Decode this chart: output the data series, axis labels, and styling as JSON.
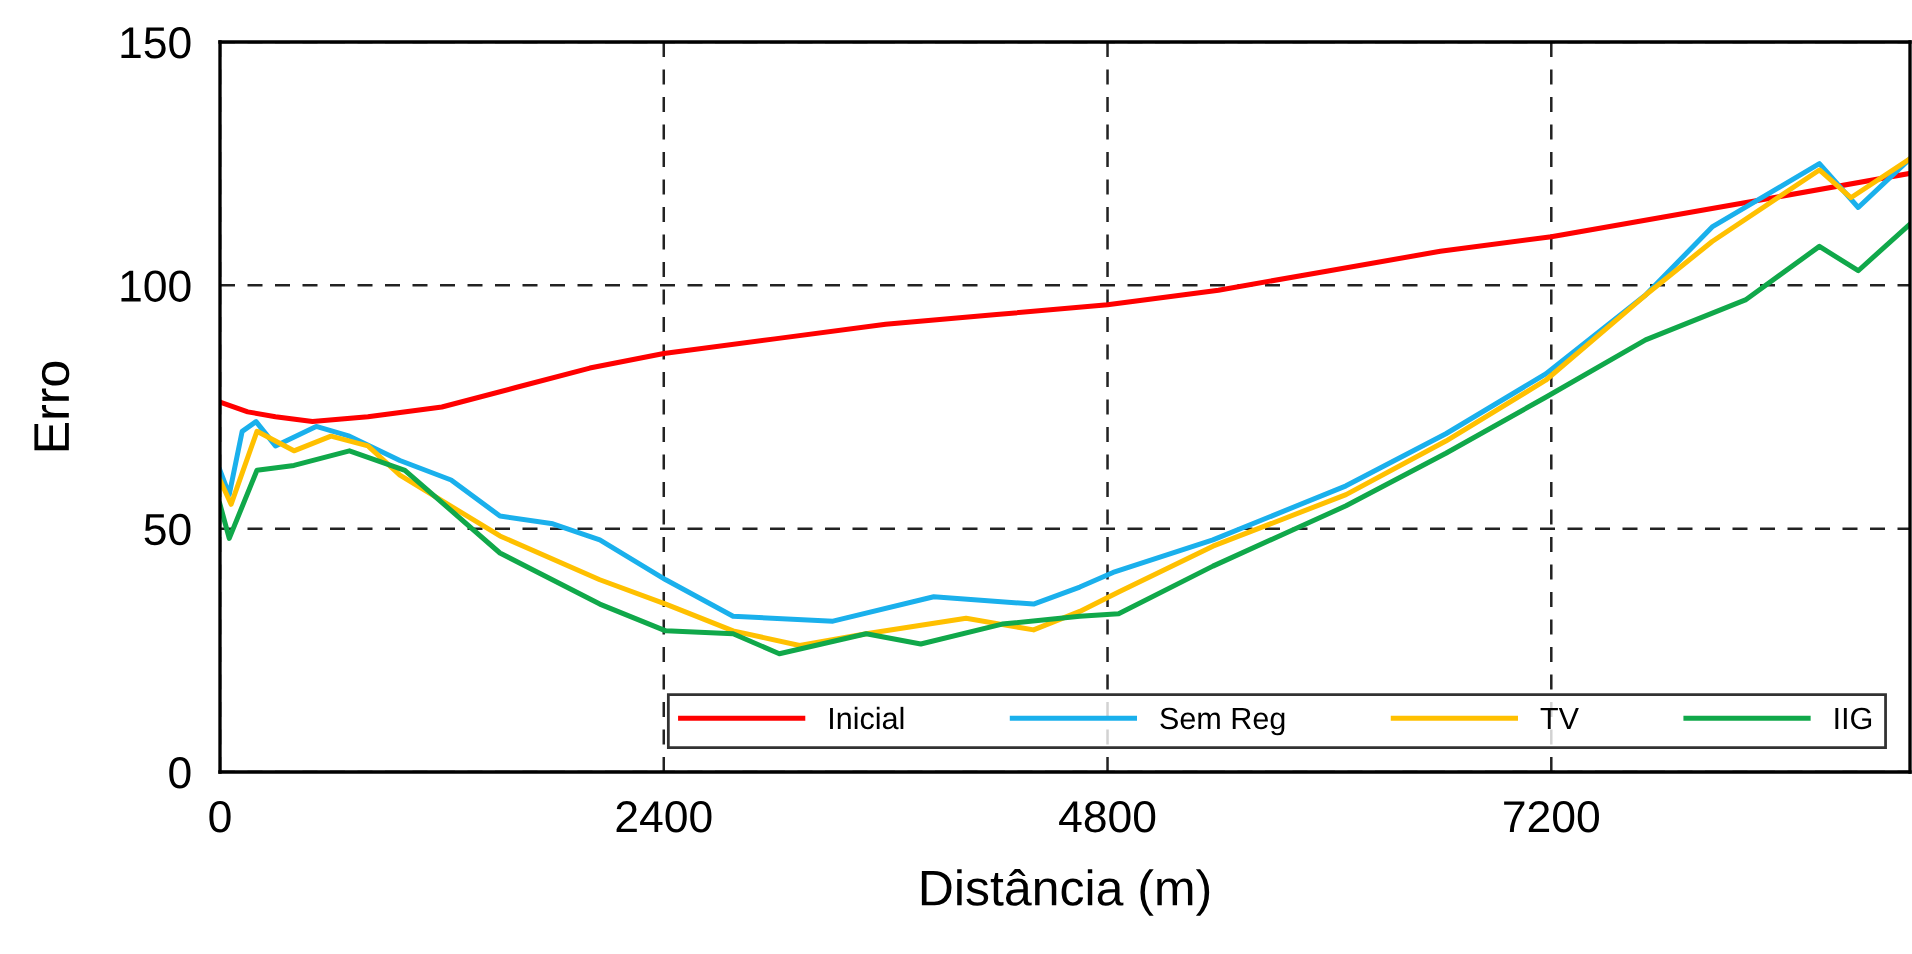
{
  "chart_data": {
    "type": "line",
    "xlabel": "Distância (m)",
    "ylabel": "Erro",
    "xlim": [
      0,
      9140
    ],
    "ylim": [
      0,
      150
    ],
    "xticks": [
      0,
      2400,
      4800,
      7200
    ],
    "yticks": [
      0,
      50,
      100,
      150
    ],
    "grid": true,
    "legend": "bottom right",
    "line_style": "solid",
    "marker": "none",
    "series": [
      {
        "name": "Inicial",
        "color": "#ff0000",
        "x": [
          0,
          150,
          300,
          500,
          800,
          1200,
          1600,
          2000,
          2400,
          3000,
          3600,
          4200,
          4800,
          5400,
          6000,
          6600,
          7200,
          7800,
          8400,
          9140
        ],
        "values": [
          76,
          74,
          73,
          72,
          73,
          75,
          79,
          83,
          86,
          89,
          92,
          94,
          96,
          99,
          103,
          107,
          110,
          114,
          118,
          123
        ]
      },
      {
        "name": "Sem Reg",
        "color": "#1ab0ec",
        "x": [
          0,
          50,
          120,
          195,
          300,
          520,
          700,
          973,
          1250,
          1514,
          1800,
          2054,
          2411,
          2775,
          3315,
          3860,
          4400,
          4650,
          4830,
          5370,
          6090,
          6630,
          7170,
          7710,
          8070,
          8650,
          8860,
          9140
        ],
        "values": [
          62,
          57,
          70,
          72,
          67,
          71,
          69,
          64,
          60,
          52.6,
          51,
          47.7,
          39.5,
          32,
          31,
          36,
          34.5,
          38,
          41,
          47.7,
          58.8,
          69.5,
          81.8,
          98,
          112,
          125,
          116,
          126
        ]
      },
      {
        "name": "TV",
        "color": "#ffc000",
        "x": [
          0,
          60,
          200,
          400,
          600,
          800,
          973,
          1514,
          2054,
          2411,
          2775,
          3135,
          3495,
          4035,
          4400,
          4650,
          4860,
          5370,
          6090,
          6630,
          7170,
          7710,
          8070,
          8650,
          8820,
          9140
        ],
        "values": [
          60,
          55,
          70,
          66,
          69,
          67,
          61,
          48.5,
          39.5,
          34.5,
          29,
          26,
          28.4,
          31.6,
          29.2,
          33,
          37,
          46.4,
          57,
          68,
          80.5,
          98,
          109,
          123.7,
          118,
          126
        ]
      },
      {
        "name": "IIG",
        "color": "#10a84a",
        "x": [
          0,
          50,
          200,
          400,
          700,
          1000,
          1514,
          2054,
          2411,
          2775,
          3025,
          3495,
          3790,
          4230,
          4650,
          4860,
          5370,
          6090,
          6630,
          7170,
          7710,
          8250,
          8650,
          8860,
          9140
        ],
        "values": [
          55,
          48,
          62,
          63,
          66,
          62,
          45,
          34.5,
          29,
          28.4,
          24.3,
          28.4,
          26.3,
          30.4,
          32,
          32.5,
          42.3,
          54.7,
          65.5,
          77,
          88.8,
          97,
          108,
          103,
          112.6
        ]
      }
    ]
  }
}
